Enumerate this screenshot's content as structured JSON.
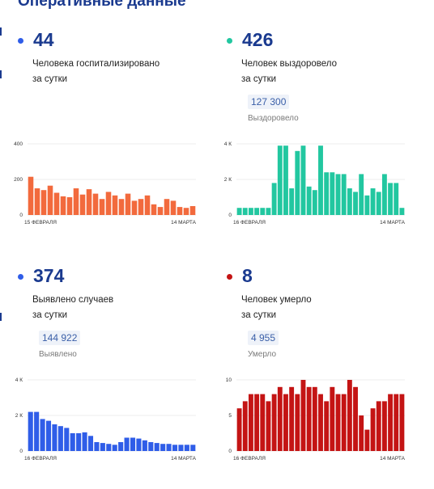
{
  "header": {
    "title": "Оперативные данные"
  },
  "colors": {
    "orange": "#f26a3d",
    "teal": "#22c7a0",
    "blue": "#2f5de8",
    "red": "#c41414",
    "navy": "#1a3a8f"
  },
  "panels": [
    {
      "id": "hospitalized",
      "value": "44",
      "desc1": "Человека госпитализировано",
      "desc2": "за сутки",
      "total": "",
      "total_label": "",
      "dot_color": "#2f5de8"
    },
    {
      "id": "recovered",
      "value": "426",
      "desc1": "Человек выздоровело",
      "desc2": "за сутки",
      "total": "127 300",
      "total_label": "Выздоровело",
      "dot_color": "#22c7a0"
    },
    {
      "id": "cases",
      "value": "374",
      "desc1": "Выявлено случаев",
      "desc2": "за сутки",
      "total": "144 922",
      "total_label": "Выявлено",
      "dot_color": "#2f5de8"
    },
    {
      "id": "deaths",
      "value": "8",
      "desc1": "Человек умерло",
      "desc2": "за сутки",
      "total": "4 955",
      "total_label": "Умерло",
      "dot_color": "#c41414"
    }
  ],
  "chart_data": [
    {
      "type": "bar",
      "color": "#f26a3d",
      "ylim": [
        0,
        400
      ],
      "yticks": [
        {
          "v": 0,
          "label": "0"
        },
        {
          "v": 200,
          "label": "200"
        },
        {
          "v": 400,
          "label": "400"
        }
      ],
      "start_label": "15 ФЕВРАЛЯ",
      "end_label": "14 МАРТА",
      "values": [
        215,
        150,
        140,
        165,
        125,
        105,
        100,
        150,
        115,
        145,
        120,
        90,
        130,
        110,
        90,
        120,
        80,
        90,
        110,
        60,
        45,
        90,
        80,
        45,
        40,
        50
      ]
    },
    {
      "type": "bar",
      "color": "#22c7a0",
      "ylim": [
        0,
        4000
      ],
      "yticks": [
        {
          "v": 0,
          "label": "0"
        },
        {
          "v": 2000,
          "label": "2 К"
        },
        {
          "v": 4000,
          "label": "4 К"
        }
      ],
      "start_label": "16 ФЕВРАЛЯ",
      "end_label": "14 МАРТА",
      "values": [
        400,
        400,
        400,
        400,
        400,
        400,
        1800,
        3900,
        3900,
        1500,
        3600,
        3900,
        1600,
        1400,
        3900,
        2400,
        2400,
        2300,
        2300,
        1500,
        1300,
        2300,
        1100,
        1500,
        1300,
        2300,
        1800,
        1800,
        400
      ]
    },
    {
      "type": "bar",
      "color": "#2f5de8",
      "ylim": [
        0,
        4000
      ],
      "yticks": [
        {
          "v": 0,
          "label": "0"
        },
        {
          "v": 2000,
          "label": "2 К"
        },
        {
          "v": 4000,
          "label": "4 К"
        }
      ],
      "start_label": "16 ФЕВРАЛЯ",
      "end_label": "14 МАРТА",
      "values": [
        2200,
        2200,
        1800,
        1700,
        1500,
        1400,
        1300,
        1000,
        1000,
        1050,
        850,
        500,
        450,
        400,
        350,
        500,
        750,
        750,
        700,
        600,
        500,
        450,
        400,
        400,
        350,
        350,
        350,
        350
      ]
    },
    {
      "type": "bar",
      "color": "#c41414",
      "ylim": [
        0,
        10
      ],
      "yticks": [
        {
          "v": 0,
          "label": "0"
        },
        {
          "v": 5,
          "label": "5"
        },
        {
          "v": 10,
          "label": "10"
        }
      ],
      "start_label": "16 ФЕВРАЛЯ",
      "end_label": "14 МАРТА",
      "values": [
        6,
        7,
        8,
        8,
        8,
        7,
        8,
        9,
        8,
        9,
        8,
        10,
        9,
        9,
        8,
        7,
        9,
        8,
        8,
        10,
        9,
        5,
        3,
        6,
        7,
        7,
        8,
        8,
        8
      ]
    }
  ]
}
